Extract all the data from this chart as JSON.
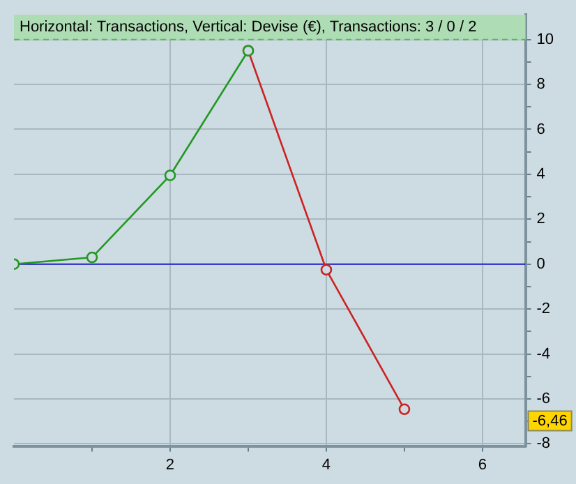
{
  "chart_data": {
    "type": "line",
    "title": "Horizontal: Transactions, Vertical: Devise (€), Transactions: 3 / 0 / 2",
    "series": [
      {
        "type": "line",
        "color": "#cc2222",
        "x": [
          3,
          4,
          5
        ],
        "values": [
          9.5,
          -0.25,
          -6.46
        ]
      },
      {
        "type": "line",
        "color": "#229922",
        "x": [
          0,
          1,
          2,
          3
        ],
        "values": [
          0,
          0.3,
          3.95,
          9.5
        ]
      }
    ],
    "xlim": [
      0,
      6.55
    ],
    "xticks": [
      {
        "value": 1,
        "label": null
      },
      2,
      {
        "value": 3,
        "label": null
      },
      4,
      {
        "value": 5,
        "label": null
      },
      6
    ],
    "ylim": [
      -8.1,
      11.1
    ],
    "yticks": [
      -8,
      {
        "value": -7,
        "label": null
      },
      -6,
      {
        "value": -5,
        "label": null
      },
      -4,
      {
        "value": -3,
        "label": null
      },
      -2,
      {
        "value": -1,
        "label": null
      },
      0,
      {
        "value": 1,
        "label": null
      },
      2,
      {
        "value": 3,
        "label": null
      },
      4,
      {
        "value": 5,
        "label": null
      },
      6,
      {
        "value": 7,
        "label": null
      },
      8,
      {
        "value": 9,
        "label": null
      },
      10
    ],
    "ref_lines": [
      {
        "axis": "y",
        "value": 0,
        "color": "#2222cc",
        "line_style": "solid"
      },
      {
        "axis": "y",
        "value": 10,
        "color": "#55bb55",
        "line_style": "dashed"
      }
    ],
    "bands": [
      {
        "axis": "y",
        "from": 10,
        "to": 11.1,
        "color": "#aedcb4"
      }
    ],
    "annotations": [
      "-6,46"
    ],
    "grid": true,
    "marker": "circle",
    "legend": false
  }
}
